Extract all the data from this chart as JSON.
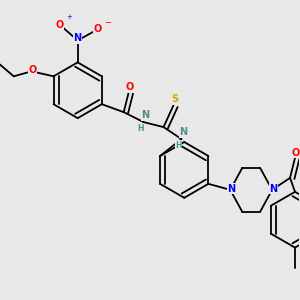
{
  "bg_color": "#e8e8e8",
  "bond_color": "#000000",
  "atom_colors": {
    "N": "#0000ff",
    "O": "#ff0000",
    "S": "#ccaa00",
    "H": "#4a9090",
    "C": "#000000"
  }
}
